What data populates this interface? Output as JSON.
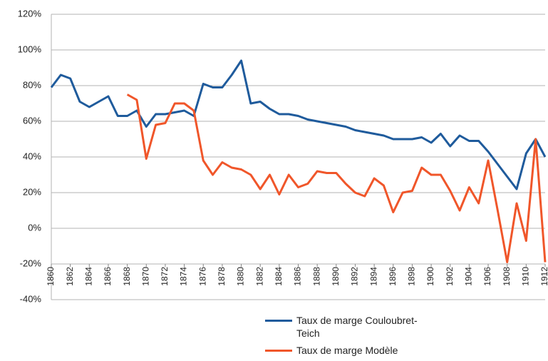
{
  "chart_data": {
    "type": "line",
    "x": [
      1860,
      1861,
      1862,
      1863,
      1864,
      1865,
      1866,
      1867,
      1868,
      1869,
      1870,
      1871,
      1872,
      1873,
      1874,
      1875,
      1876,
      1877,
      1878,
      1879,
      1880,
      1881,
      1882,
      1883,
      1884,
      1885,
      1886,
      1887,
      1888,
      1889,
      1890,
      1891,
      1892,
      1893,
      1894,
      1895,
      1896,
      1897,
      1898,
      1899,
      1900,
      1901,
      1902,
      1903,
      1904,
      1905,
      1906,
      1907,
      1908,
      1909,
      1910,
      1911,
      1912
    ],
    "series": [
      {
        "name": "Taux de marge Couloubret-Teich",
        "color": "#1f5b9c",
        "values": [
          79,
          86,
          84,
          71,
          68,
          71,
          74,
          63,
          63,
          66,
          57,
          64,
          64,
          65,
          66,
          63,
          81,
          79,
          79,
          86,
          94,
          70,
          71,
          67,
          64,
          64,
          63,
          61,
          60,
          59,
          58,
          57,
          55,
          54,
          53,
          52,
          50,
          50,
          50,
          51,
          48,
          53,
          46,
          52,
          49,
          49,
          43,
          36,
          29,
          22,
          42,
          50,
          40
        ]
      },
      {
        "name": "Taux de marge Modèle",
        "color": "#f0562a",
        "values": [
          null,
          null,
          null,
          null,
          null,
          null,
          null,
          null,
          75,
          72,
          39,
          58,
          59,
          70,
          70,
          66,
          38,
          30,
          37,
          34,
          33,
          30,
          22,
          30,
          19,
          30,
          23,
          25,
          32,
          31,
          31,
          25,
          20,
          18,
          28,
          24,
          9,
          20,
          21,
          34,
          30,
          30,
          21,
          10,
          23,
          14,
          38,
          10,
          -19,
          14,
          -7,
          50,
          -19
        ]
      }
    ],
    "xlim": [
      1860,
      1912
    ],
    "xticks": [
      1860,
      1862,
      1864,
      1866,
      1868,
      1870,
      1872,
      1874,
      1876,
      1878,
      1880,
      1882,
      1884,
      1886,
      1888,
      1890,
      1892,
      1894,
      1896,
      1898,
      1900,
      1902,
      1904,
      1906,
      1908,
      1910,
      1912
    ],
    "ylim": [
      -40,
      120
    ],
    "yticks": [
      {
        "value": -40,
        "label": "-40%"
      },
      {
        "value": -20,
        "label": "-20%"
      },
      {
        "value": 0,
        "label": "0%"
      },
      {
        "value": 20,
        "label": "20%"
      },
      {
        "value": 40,
        "label": "40%"
      },
      {
        "value": 60,
        "label": "60%"
      },
      {
        "value": 80,
        "label": "80%"
      },
      {
        "value": 100,
        "label": "100%"
      },
      {
        "value": 120,
        "label": "120%"
      }
    ],
    "grid": true,
    "legend": "bottom"
  }
}
